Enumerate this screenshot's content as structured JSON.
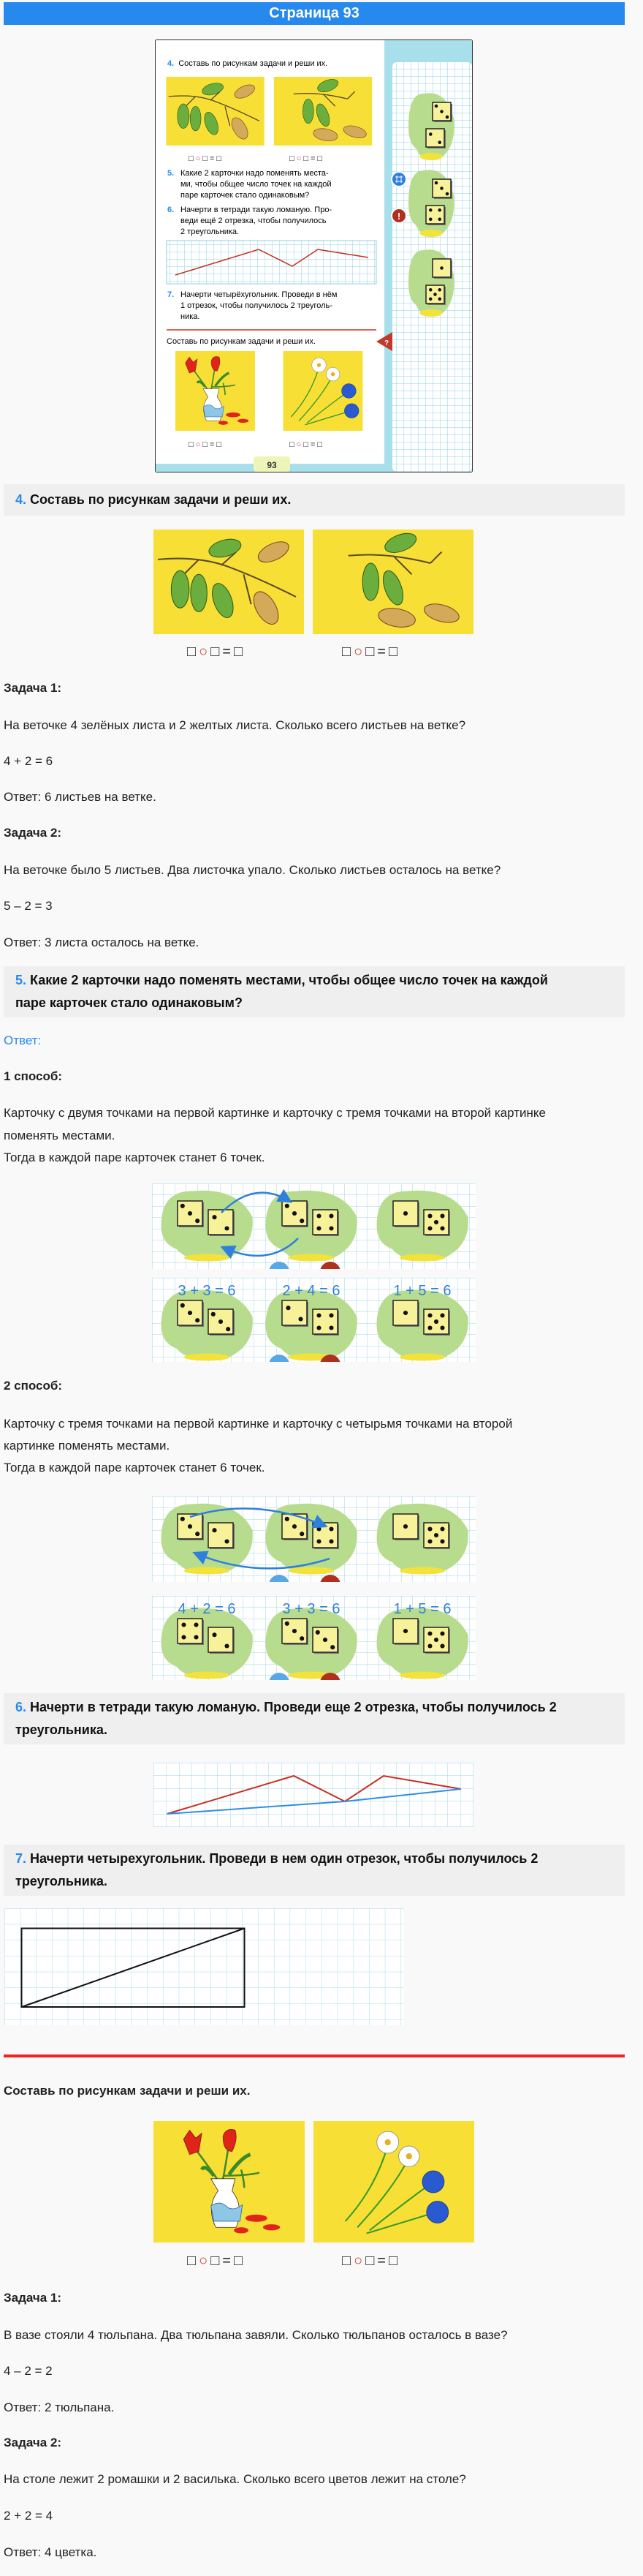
{
  "header": {
    "title": "Страница 93"
  },
  "formula_parts": [
    "□",
    "○",
    "□",
    "=",
    "□"
  ],
  "textbook": {
    "ex4": {
      "num": "4.",
      "text": "Составь по рисункам задачи и реши их."
    },
    "ex5": {
      "num": "5.",
      "lines": [
        "Какие 2 карточки надо поменять места-",
        "ми, чтобы общее число точек на каждой",
        "паре карточек стало одинаковым?"
      ]
    },
    "ex6": {
      "num": "6.",
      "lines": [
        "Начерти в тетради такую ломаную. Про-",
        "веди ещё 2 отрезка, чтобы получилось",
        "2 треугольника."
      ]
    },
    "ex7": {
      "num": "7.",
      "lines": [
        "Начерти четырёхугольник. Проведи в нём",
        "1 отрезок, чтобы получилось 2 треуголь-",
        "ника."
      ]
    },
    "extra": "Составь по рисункам задачи и реши их.",
    "page_number": "93",
    "dice_pairs": [
      [
        3,
        2
      ],
      [
        3,
        4
      ],
      [
        1,
        5
      ]
    ],
    "question_mark": "?",
    "exclamation": "!"
  },
  "section4": {
    "num": "4.",
    "title": "Составь по рисункам задачи и реши их.",
    "tasks": [
      {
        "label": "Задача 1:",
        "text": "На веточке 4 зелёных листа и 2 желтых листа. Сколько всего листьев на ветке?",
        "equation": "4 + 2 = 6",
        "answer": "Ответ: 6 листьев на ветке."
      },
      {
        "label": "Задача 2:",
        "text": "На веточке было 5 листьев. Два листочка упало. Сколько листьев осталось на ветке?",
        "equation": "5 – 2 = 3",
        "answer": "Ответ: 3 листа осталось на ветке."
      }
    ]
  },
  "section5": {
    "num": "5.",
    "title_line1": "Какие 2 карточки надо поменять местами, чтобы общее число точек на каждой",
    "title_line2": "паре карточек стало одинаковым?",
    "answer_label": "Ответ:",
    "methods": [
      {
        "label": "1 способ:",
        "lines": [
          "Карточку с двумя точками на первой картинке и карточку с тремя точками на второй картинке",
          "поменять местами.",
          "Тогда в каждой паре карточек станет 6 точек."
        ],
        "before": [
          [
            3,
            2
          ],
          [
            3,
            4
          ],
          [
            1,
            5
          ]
        ],
        "after": [
          [
            3,
            3
          ],
          [
            2,
            4
          ],
          [
            1,
            5
          ]
        ],
        "equations": [
          "3 + 3 = 6",
          "2 + 4 = 6",
          "1 + 5 = 6"
        ]
      },
      {
        "label": "2 способ:",
        "lines": [
          "Карточку с тремя точками на первой картинке и карточку с четырьмя точками на второй",
          "картинке поменять местами.",
          "Тогда в каждой паре карточек станет 6 точек."
        ],
        "before": [
          [
            3,
            2
          ],
          [
            3,
            4
          ],
          [
            1,
            5
          ]
        ],
        "after": [
          [
            4,
            2
          ],
          [
            3,
            3
          ],
          [
            1,
            5
          ]
        ],
        "equations": [
          "4 + 2 = 6",
          "3 + 3 = 6",
          "1 + 5 = 6"
        ]
      }
    ]
  },
  "section6": {
    "num": "6.",
    "title_line1": "Начерти в тетради такую ломаную. Проведи еще 2 отрезка, чтобы получилось 2",
    "title_line2": "треугольника."
  },
  "section7": {
    "num": "7.",
    "title_line1": "Начерти четырехугольник. Проведи в нем один отрезок, чтобы получилось 2",
    "title_line2": "треугольника."
  },
  "extra": {
    "title": "Составь по рисункам задачи и реши их.",
    "tasks": [
      {
        "label": "Задача 1:",
        "text": "В вазе стояли 4 тюльпана. Два тюльпана завяли. Сколько тюльпанов осталось в вазе?",
        "equation": "4 – 2 = 2",
        "answer": "Ответ: 2 тюльпана."
      },
      {
        "label": "Задача 2:",
        "text": "На столе лежит 2 ромашки и 2 василька. Сколько всего цветов лежит на столе?",
        "equation": "2 + 2 = 4",
        "answer": "Ответ: 4 цветка."
      }
    ]
  },
  "colors": {
    "header": "#2589ee",
    "accent_number": "#2589ee",
    "section_bg": "#efefef",
    "divider": "#f22222",
    "picture_bg": "#f8df36",
    "polyline_red": "#c62e1e",
    "polyline_blue": "#2f8de4"
  }
}
